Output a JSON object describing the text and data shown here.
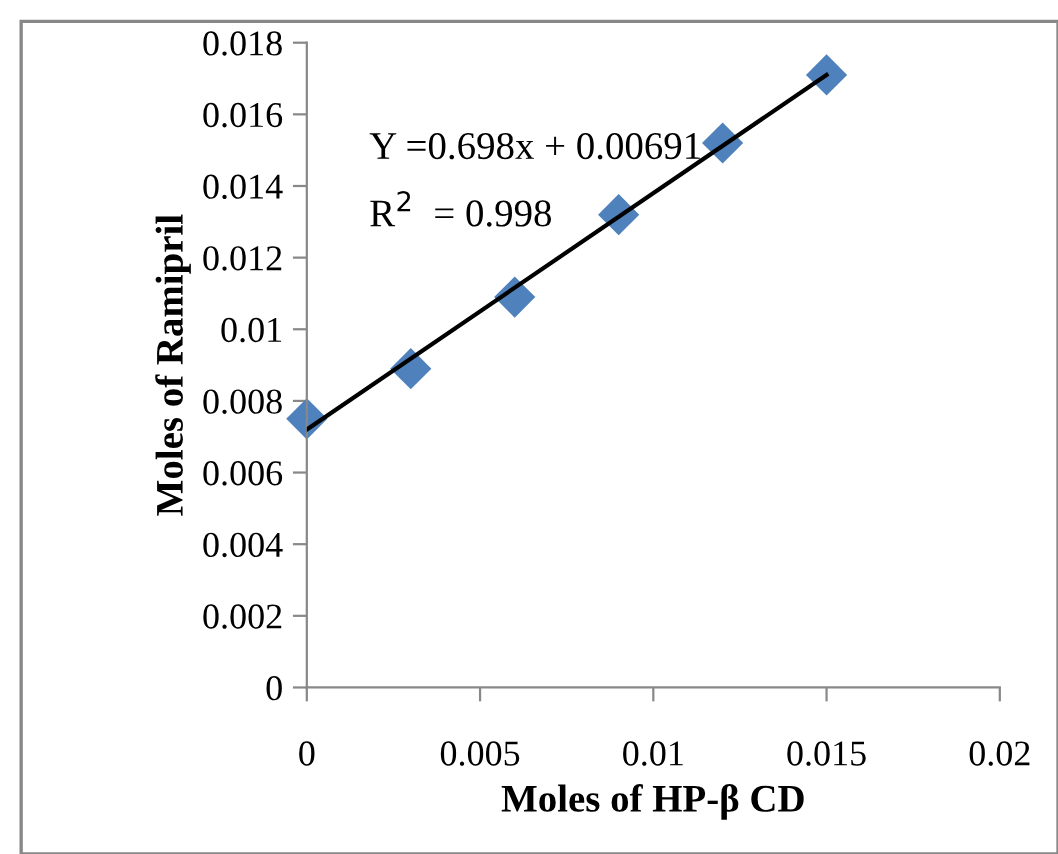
{
  "chart_data": {
    "type": "scatter",
    "xlabel": "Moles of HP-β CD",
    "ylabel": "Moles of Ramipril",
    "annotations": [
      "Y =0.698x + 0.00691",
      "R$^{2}$  = 0.998"
    ],
    "x": [
      0,
      0.003,
      0.006,
      0.009,
      0.012,
      0.015
    ],
    "series": [
      {
        "color": "#4f81bd",
        "marker": "diamond",
        "values": [
          0.0075,
          0.0089,
          0.0109,
          0.0132,
          0.0152,
          0.0171
        ]
      },
      {
        "type": "line",
        "color": "#000000",
        "marker": "none",
        "line_style": "solid",
        "x": [
          0,
          0.015
        ],
        "values": [
          0.0072,
          0.0171
        ]
      }
    ],
    "xlim": [
      0,
      0.02
    ],
    "xticks": [
      0,
      0.005,
      0.01,
      0.015,
      0.02
    ],
    "ylim": [
      0,
      0.018
    ],
    "yticks": [
      0,
      0.002,
      0.004,
      0.006,
      0.008,
      0.01,
      0.012,
      0.014,
      0.016,
      0.018
    ],
    "grid": false,
    "legend": false
  }
}
